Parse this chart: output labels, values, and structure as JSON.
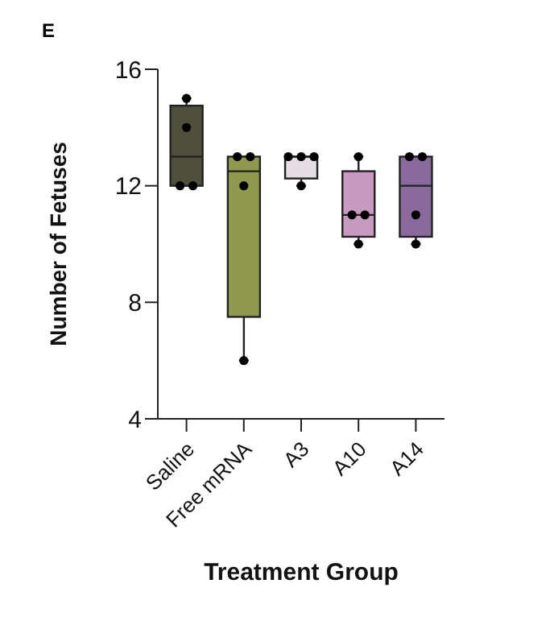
{
  "chart_data": {
    "type": "box",
    "annotations": [
      "E"
    ],
    "xlabel": "Treatment Group",
    "ylabel": "Number of Fetuses",
    "categories": [
      "Saline",
      "Free mRNA",
      "A3",
      "A10",
      "A14"
    ],
    "colors": [
      "#4f4f3b",
      "#8f9a4e",
      "#e6dde3",
      "#c79ac0",
      "#8a6a9c"
    ],
    "boxes": [
      {
        "low": 12,
        "q1": 12,
        "median": 13,
        "q3": 14.75,
        "high": 15
      },
      {
        "low": 6,
        "q1": 7.5,
        "median": 12.5,
        "q3": 13,
        "high": 13
      },
      {
        "low": 12,
        "q1": 12.25,
        "median": 13,
        "q3": 13,
        "high": 13
      },
      {
        "low": 10,
        "q1": 10.25,
        "median": 11,
        "q3": 12.5,
        "high": 13
      },
      {
        "low": 10,
        "q1": 10.25,
        "median": 12,
        "q3": 13,
        "high": 13
      }
    ],
    "series": [
      {
        "type": "scatter",
        "color": "#000000",
        "marker": "circle",
        "x": [
          "Saline",
          "Saline",
          "Saline",
          "Saline",
          "Free mRNA",
          "Free mRNA",
          "Free mRNA",
          "Free mRNA",
          "A3",
          "A3",
          "A3",
          "A3",
          "A10",
          "A10",
          "A10",
          "A10",
          "A14",
          "A14",
          "A14",
          "A14"
        ],
        "values": [
          15,
          14,
          12,
          12,
          13,
          13,
          12,
          6,
          13,
          13,
          13,
          12,
          13,
          11,
          11,
          10,
          13,
          13,
          11,
          10
        ]
      }
    ],
    "ylim": [
      4,
      16
    ],
    "yticks": [
      4,
      8,
      12,
      16
    ]
  }
}
